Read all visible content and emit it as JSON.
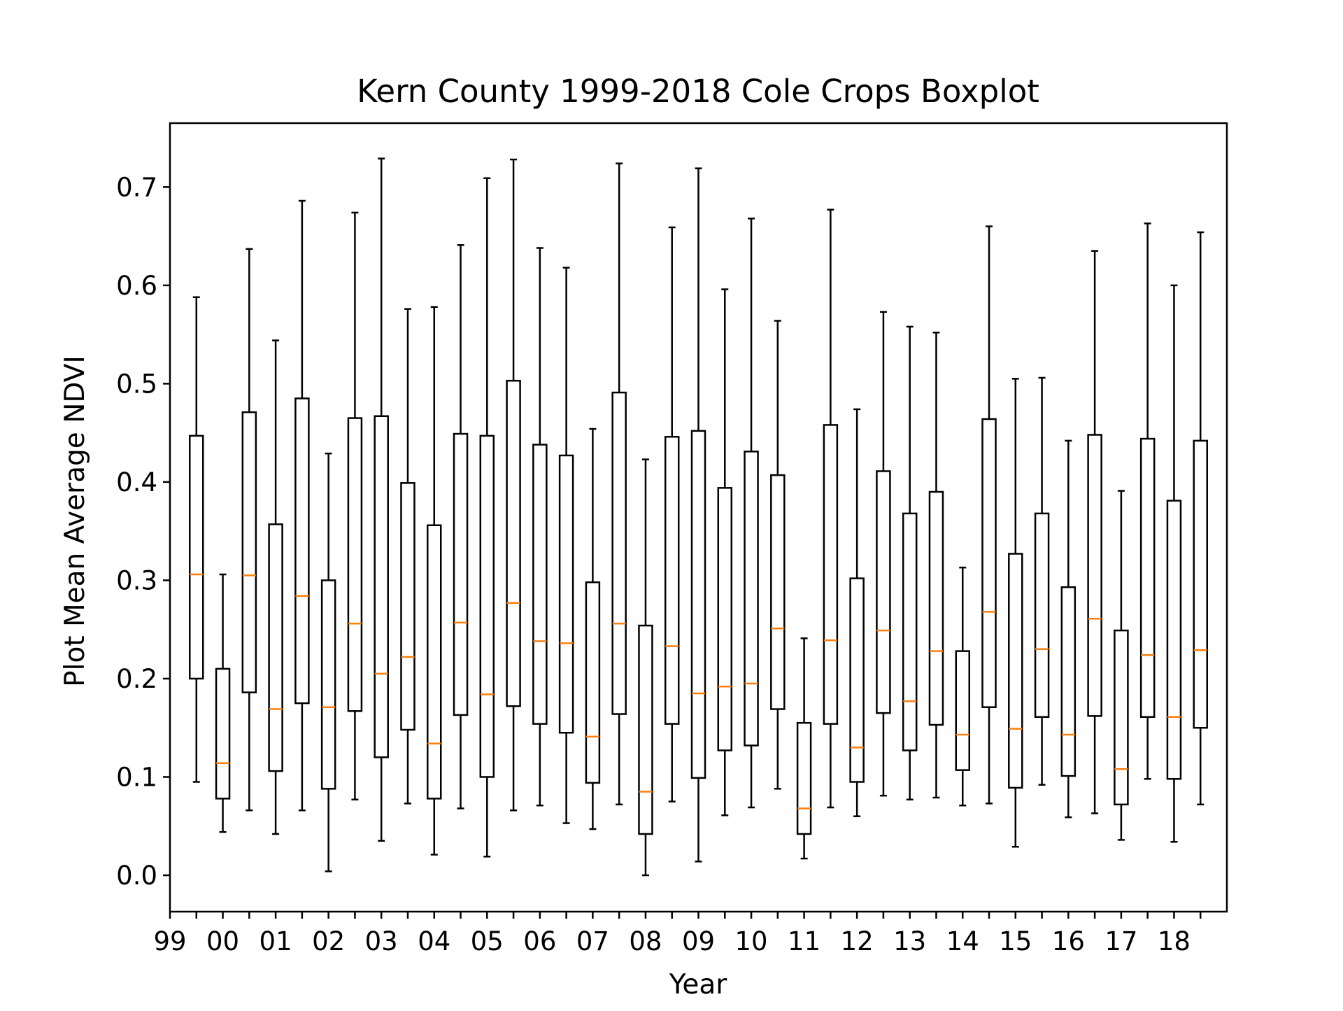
{
  "chart_data": {
    "type": "boxplot",
    "title": "Kern County 1999-2018 Cole Crops Boxplot",
    "xlabel": "Year",
    "ylabel": "Plot Mean Average NDVI",
    "ylim": [
      -0.037,
      0.765
    ],
    "yticks": [
      0.0,
      0.1,
      0.2,
      0.3,
      0.4,
      0.5,
      0.6,
      0.7
    ],
    "ytick_labels": [
      "0.0",
      "0.1",
      "0.2",
      "0.3",
      "0.4",
      "0.5",
      "0.6",
      "0.7"
    ],
    "xticks": [
      "99",
      "00",
      "01",
      "02",
      "03",
      "04",
      "05",
      "06",
      "07",
      "08",
      "09",
      "10",
      "11",
      "12",
      "13",
      "14",
      "15",
      "16",
      "17",
      "18"
    ],
    "grid": false,
    "colors": {
      "box": "#000000",
      "median": "#ff7f0e"
    },
    "boxes": [
      {
        "whisker_low": 0.095,
        "q1": 0.2,
        "median": 0.306,
        "q3": 0.447,
        "whisker_high": 0.588
      },
      {
        "whisker_low": 0.044,
        "q1": 0.078,
        "median": 0.114,
        "q3": 0.21,
        "whisker_high": 0.306
      },
      {
        "whisker_low": 0.066,
        "q1": 0.186,
        "median": 0.305,
        "q3": 0.471,
        "whisker_high": 0.637
      },
      {
        "whisker_low": 0.042,
        "q1": 0.106,
        "median": 0.169,
        "q3": 0.357,
        "whisker_high": 0.544
      },
      {
        "whisker_low": 0.066,
        "q1": 0.175,
        "median": 0.284,
        "q3": 0.485,
        "whisker_high": 0.686
      },
      {
        "whisker_low": 0.004,
        "q1": 0.088,
        "median": 0.171,
        "q3": 0.3,
        "whisker_high": 0.429
      },
      {
        "whisker_low": 0.077,
        "q1": 0.167,
        "median": 0.256,
        "q3": 0.465,
        "whisker_high": 0.674
      },
      {
        "whisker_low": 0.035,
        "q1": 0.12,
        "median": 0.205,
        "q3": 0.467,
        "whisker_high": 0.729
      },
      {
        "whisker_low": 0.073,
        "q1": 0.148,
        "median": 0.222,
        "q3": 0.399,
        "whisker_high": 0.576
      },
      {
        "whisker_low": 0.021,
        "q1": 0.078,
        "median": 0.134,
        "q3": 0.356,
        "whisker_high": 0.578
      },
      {
        "whisker_low": 0.068,
        "q1": 0.163,
        "median": 0.257,
        "q3": 0.449,
        "whisker_high": 0.641
      },
      {
        "whisker_low": 0.019,
        "q1": 0.1,
        "median": 0.184,
        "q3": 0.447,
        "whisker_high": 0.709
      },
      {
        "whisker_low": 0.066,
        "q1": 0.172,
        "median": 0.277,
        "q3": 0.503,
        "whisker_high": 0.728
      },
      {
        "whisker_low": 0.071,
        "q1": 0.154,
        "median": 0.238,
        "q3": 0.438,
        "whisker_high": 0.638
      },
      {
        "whisker_low": 0.053,
        "q1": 0.145,
        "median": 0.236,
        "q3": 0.427,
        "whisker_high": 0.618
      },
      {
        "whisker_low": 0.047,
        "q1": 0.094,
        "median": 0.141,
        "q3": 0.298,
        "whisker_high": 0.454
      },
      {
        "whisker_low": 0.072,
        "q1": 0.164,
        "median": 0.256,
        "q3": 0.491,
        "whisker_high": 0.724
      },
      {
        "whisker_low": 0.0,
        "q1": 0.042,
        "median": 0.085,
        "q3": 0.254,
        "whisker_high": 0.423
      },
      {
        "whisker_low": 0.075,
        "q1": 0.154,
        "median": 0.233,
        "q3": 0.446,
        "whisker_high": 0.659
      },
      {
        "whisker_low": 0.014,
        "q1": 0.099,
        "median": 0.185,
        "q3": 0.452,
        "whisker_high": 0.719
      },
      {
        "whisker_low": 0.061,
        "q1": 0.127,
        "median": 0.192,
        "q3": 0.394,
        "whisker_high": 0.596
      },
      {
        "whisker_low": 0.069,
        "q1": 0.132,
        "median": 0.195,
        "q3": 0.431,
        "whisker_high": 0.668
      },
      {
        "whisker_low": 0.088,
        "q1": 0.169,
        "median": 0.251,
        "q3": 0.407,
        "whisker_high": 0.564
      },
      {
        "whisker_low": 0.017,
        "q1": 0.042,
        "median": 0.068,
        "q3": 0.155,
        "whisker_high": 0.241
      },
      {
        "whisker_low": 0.069,
        "q1": 0.154,
        "median": 0.239,
        "q3": 0.458,
        "whisker_high": 0.677
      },
      {
        "whisker_low": 0.06,
        "q1": 0.095,
        "median": 0.13,
        "q3": 0.302,
        "whisker_high": 0.474
      },
      {
        "whisker_low": 0.081,
        "q1": 0.165,
        "median": 0.249,
        "q3": 0.411,
        "whisker_high": 0.573
      },
      {
        "whisker_low": 0.077,
        "q1": 0.127,
        "median": 0.177,
        "q3": 0.368,
        "whisker_high": 0.558
      },
      {
        "whisker_low": 0.079,
        "q1": 0.153,
        "median": 0.228,
        "q3": 0.39,
        "whisker_high": 0.552
      },
      {
        "whisker_low": 0.071,
        "q1": 0.107,
        "median": 0.143,
        "q3": 0.228,
        "whisker_high": 0.313
      },
      {
        "whisker_low": 0.073,
        "q1": 0.171,
        "median": 0.268,
        "q3": 0.464,
        "whisker_high": 0.66
      },
      {
        "whisker_low": 0.029,
        "q1": 0.089,
        "median": 0.149,
        "q3": 0.327,
        "whisker_high": 0.505
      },
      {
        "whisker_low": 0.092,
        "q1": 0.161,
        "median": 0.23,
        "q3": 0.368,
        "whisker_high": 0.506
      },
      {
        "whisker_low": 0.059,
        "q1": 0.101,
        "median": 0.143,
        "q3": 0.293,
        "whisker_high": 0.442
      },
      {
        "whisker_low": 0.063,
        "q1": 0.162,
        "median": 0.261,
        "q3": 0.448,
        "whisker_high": 0.635
      },
      {
        "whisker_low": 0.036,
        "q1": 0.072,
        "median": 0.108,
        "q3": 0.249,
        "whisker_high": 0.391
      },
      {
        "whisker_low": 0.098,
        "q1": 0.161,
        "median": 0.224,
        "q3": 0.444,
        "whisker_high": 0.663
      },
      {
        "whisker_low": 0.034,
        "q1": 0.098,
        "median": 0.161,
        "q3": 0.381,
        "whisker_high": 0.6
      },
      {
        "whisker_low": 0.072,
        "q1": 0.15,
        "median": 0.229,
        "q3": 0.442,
        "whisker_high": 0.654
      }
    ]
  }
}
